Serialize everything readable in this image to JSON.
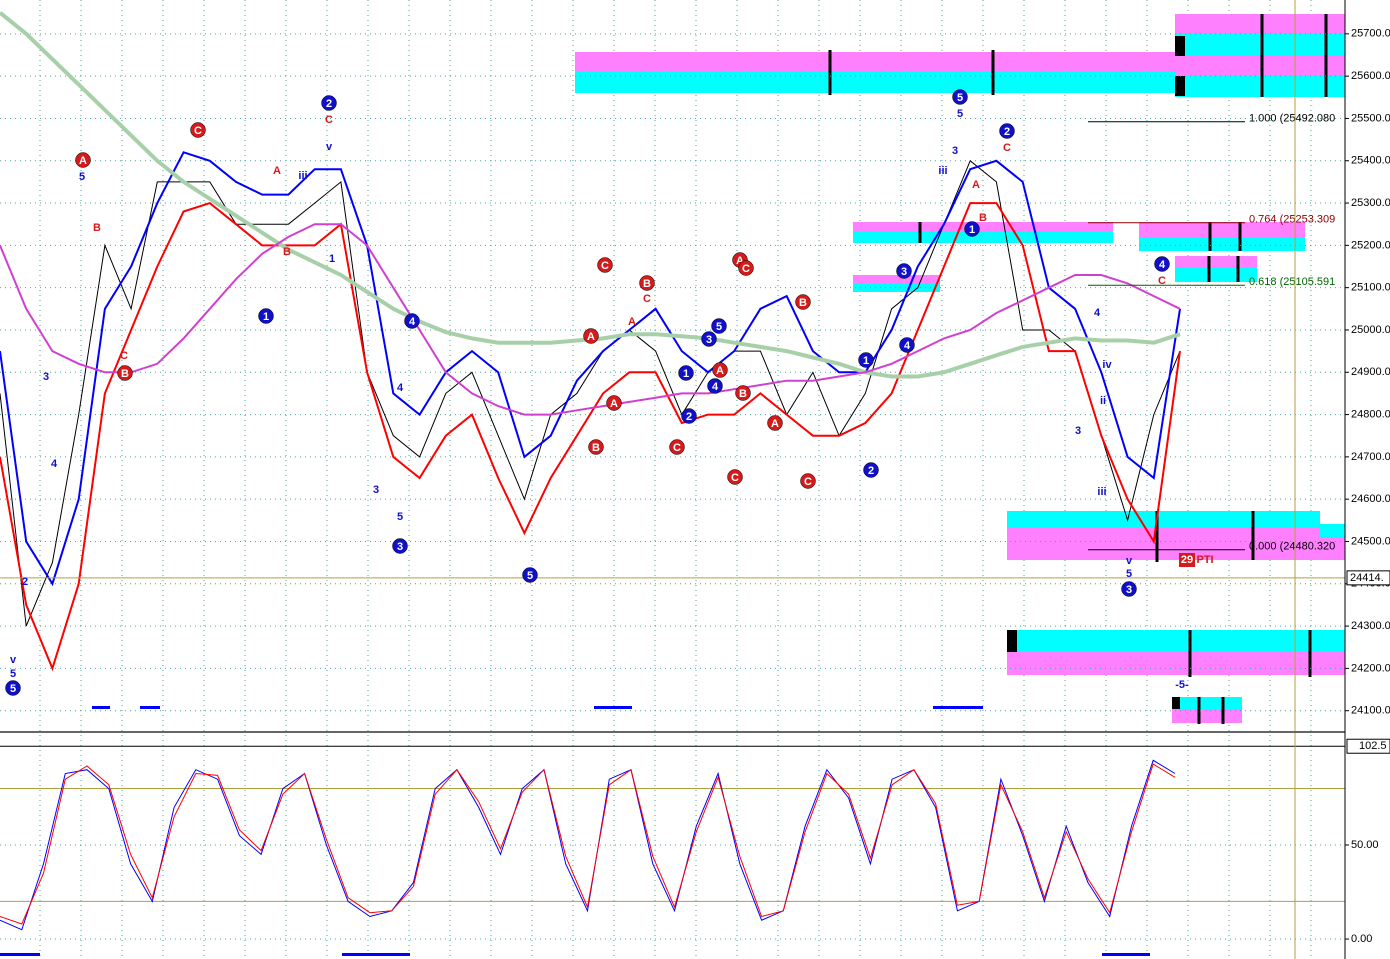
{
  "chart_data": [
    {
      "type": "line",
      "ylim": [
        24052,
        25780
      ],
      "yticks": [
        {
          "value": 24100,
          "label": "24100.00"
        },
        {
          "value": 24200,
          "label": "24200.00"
        },
        {
          "value": 24300,
          "label": "24300.00"
        },
        {
          "value": 24400,
          "label": "24400.00"
        },
        {
          "value": 24500,
          "label": "24500.00"
        },
        {
          "value": 24600,
          "label": "24600.00"
        },
        {
          "value": 24700,
          "label": "24700.00"
        },
        {
          "value": 24800,
          "label": "24800.00"
        },
        {
          "value": 24900,
          "label": "24900.00"
        },
        {
          "value": 25000,
          "label": "25000.00"
        },
        {
          "value": 25100,
          "label": "25100.00"
        },
        {
          "value": 25200,
          "label": "25200.00"
        },
        {
          "value": 25300,
          "label": "25300.00"
        },
        {
          "value": 25400,
          "label": "25400.00"
        },
        {
          "value": 25500,
          "label": "25500.00"
        },
        {
          "value": 25600,
          "label": "25600.00"
        },
        {
          "value": 25700,
          "label": "25700.00"
        }
      ],
      "grid": true,
      "series": [
        {
          "color": "#000000",
          "values": [
            24850,
            24300,
            24450,
            24800,
            25200,
            25050,
            25350,
            25350,
            25350,
            25250,
            25250,
            25250,
            25300,
            25350,
            24900,
            24750,
            24700,
            24850,
            24900,
            24750,
            24600,
            24800,
            24850,
            24950,
            25000,
            24950,
            24800,
            24900,
            24950,
            24950,
            24800,
            24900,
            24750,
            24850,
            25050,
            25100,
            25250,
            25400,
            25350,
            25000,
            25000,
            24950,
            24750,
            24550,
            24800,
            24950
          ]
        },
        {
          "color": "#0000ff",
          "values": [
            24950,
            24500,
            24400,
            24600,
            25050,
            25150,
            25300,
            25420,
            25400,
            25350,
            25320,
            25320,
            25380,
            25380,
            25200,
            24850,
            24800,
            24900,
            24950,
            24900,
            24700,
            24750,
            24880,
            24950,
            25000,
            25050,
            24950,
            24900,
            24950,
            25050,
            25080,
            24950,
            24900,
            24900,
            25000,
            25150,
            25250,
            25380,
            25400,
            25350,
            25100,
            25050,
            24900,
            24700,
            24650,
            25050
          ]
        },
        {
          "color": "#ff0000",
          "values": [
            24700,
            24350,
            24200,
            24400,
            24850,
            25000,
            25150,
            25280,
            25300,
            25250,
            25200,
            25200,
            25200,
            25250,
            24900,
            24700,
            24650,
            24750,
            24800,
            24650,
            24520,
            24650,
            24750,
            24850,
            24900,
            24900,
            24780,
            24800,
            24800,
            24850,
            24800,
            24750,
            24750,
            24780,
            24850,
            25000,
            25150,
            25300,
            25300,
            25200,
            24950,
            24950,
            24750,
            24600,
            24500,
            24950
          ]
        },
        {
          "color": "#a8d0a8",
          "values": [
            25750,
            25700,
            25640,
            25580,
            25520,
            25460,
            25400,
            25350,
            25310,
            25270,
            25230,
            25190,
            25160,
            25130,
            25090,
            25050,
            25020,
            24995,
            24980,
            24970,
            24970,
            24970,
            24975,
            24980,
            24990,
            24990,
            24985,
            24980,
            24970,
            24960,
            24950,
            24935,
            24920,
            24900,
            24890,
            24890,
            24900,
            24920,
            24940,
            24960,
            24970,
            24980,
            24975,
            24975,
            24970,
            24990
          ]
        },
        {
          "color": "#d040d0",
          "values": [
            25200,
            25050,
            24950,
            24920,
            24900,
            24900,
            24920,
            24980,
            25050,
            25120,
            25180,
            25220,
            25250,
            25250,
            25200,
            25100,
            25000,
            24900,
            24850,
            24820,
            24800,
            24800,
            24810,
            24820,
            24830,
            24840,
            24850,
            24850,
            24860,
            24870,
            24880,
            24880,
            24890,
            24900,
            24920,
            24950,
            24980,
            25000,
            25040,
            25070,
            25100,
            25130,
            25130,
            25110,
            25080,
            25050
          ]
        }
      ],
      "fib_levels": [
        {
          "value": 25492.08,
          "label": "1.000 (25492.080"
        },
        {
          "value": 25253.309,
          "label": "0.764 (25253.309"
        },
        {
          "value": 25105.591,
          "label": "0.618 (25105.591"
        },
        {
          "value": 24480.32,
          "label": "0.000 (24480.320"
        }
      ],
      "last_price": {
        "value": 24414,
        "label": "24414."
      },
      "annotations": [
        "5",
        "1",
        "2",
        "4",
        "3",
        "5",
        "1",
        "2",
        "3",
        "4",
        "5",
        "2",
        "1",
        "3",
        "4",
        "5",
        "1",
        "2",
        "3",
        "4",
        "A",
        "B",
        "C",
        "C",
        "B",
        "A",
        "A",
        "B",
        "C",
        "A",
        "C",
        "B",
        "C",
        "C",
        "A",
        "B",
        "A",
        "5",
        "C",
        "B",
        "v",
        "5",
        "2",
        "3",
        "4",
        "A",
        "B",
        "iii",
        "v",
        "C",
        "1",
        "3",
        "4",
        "5",
        "C",
        "A",
        "3",
        "5",
        "iii",
        "A",
        "B",
        "C",
        "4",
        "iv",
        "ii",
        "3",
        "iii",
        "v",
        "5",
        "C",
        "-5-",
        "PTI",
        "29"
      ]
    },
    {
      "type": "line",
      "ylim": [
        -10.6,
        109
      ],
      "yticks": [
        {
          "value": 0,
          "label": "0.00"
        },
        {
          "value": 50,
          "label": "50.00"
        }
      ],
      "last_value": {
        "value": 102.5,
        "label": "102.5"
      },
      "ref_lines": [
        80,
        20
      ],
      "series": [
        {
          "color": "#0000ff",
          "values": [
            10,
            5,
            40,
            88,
            90,
            80,
            40,
            20,
            70,
            90,
            85,
            55,
            45,
            80,
            88,
            50,
            20,
            12,
            15,
            30,
            80,
            90,
            70,
            45,
            80,
            90,
            40,
            15,
            85,
            90,
            40,
            15,
            60,
            88,
            40,
            10,
            15,
            60,
            90,
            75,
            40,
            85,
            90,
            70,
            15,
            20,
            85,
            55,
            20,
            60,
            30,
            12,
            60,
            95,
            88
          ]
        },
        {
          "color": "#ff0000",
          "values": [
            12,
            8,
            35,
            85,
            92,
            82,
            45,
            22,
            65,
            88,
            87,
            58,
            47,
            77,
            88,
            53,
            22,
            14,
            15,
            28,
            77,
            90,
            73,
            48,
            78,
            90,
            44,
            17,
            82,
            90,
            44,
            17,
            57,
            86,
            44,
            12,
            15,
            57,
            88,
            77,
            43,
            82,
            90,
            72,
            18,
            20,
            82,
            57,
            22,
            57,
            32,
            14,
            57,
            93,
            86
          ]
        }
      ]
    }
  ]
}
